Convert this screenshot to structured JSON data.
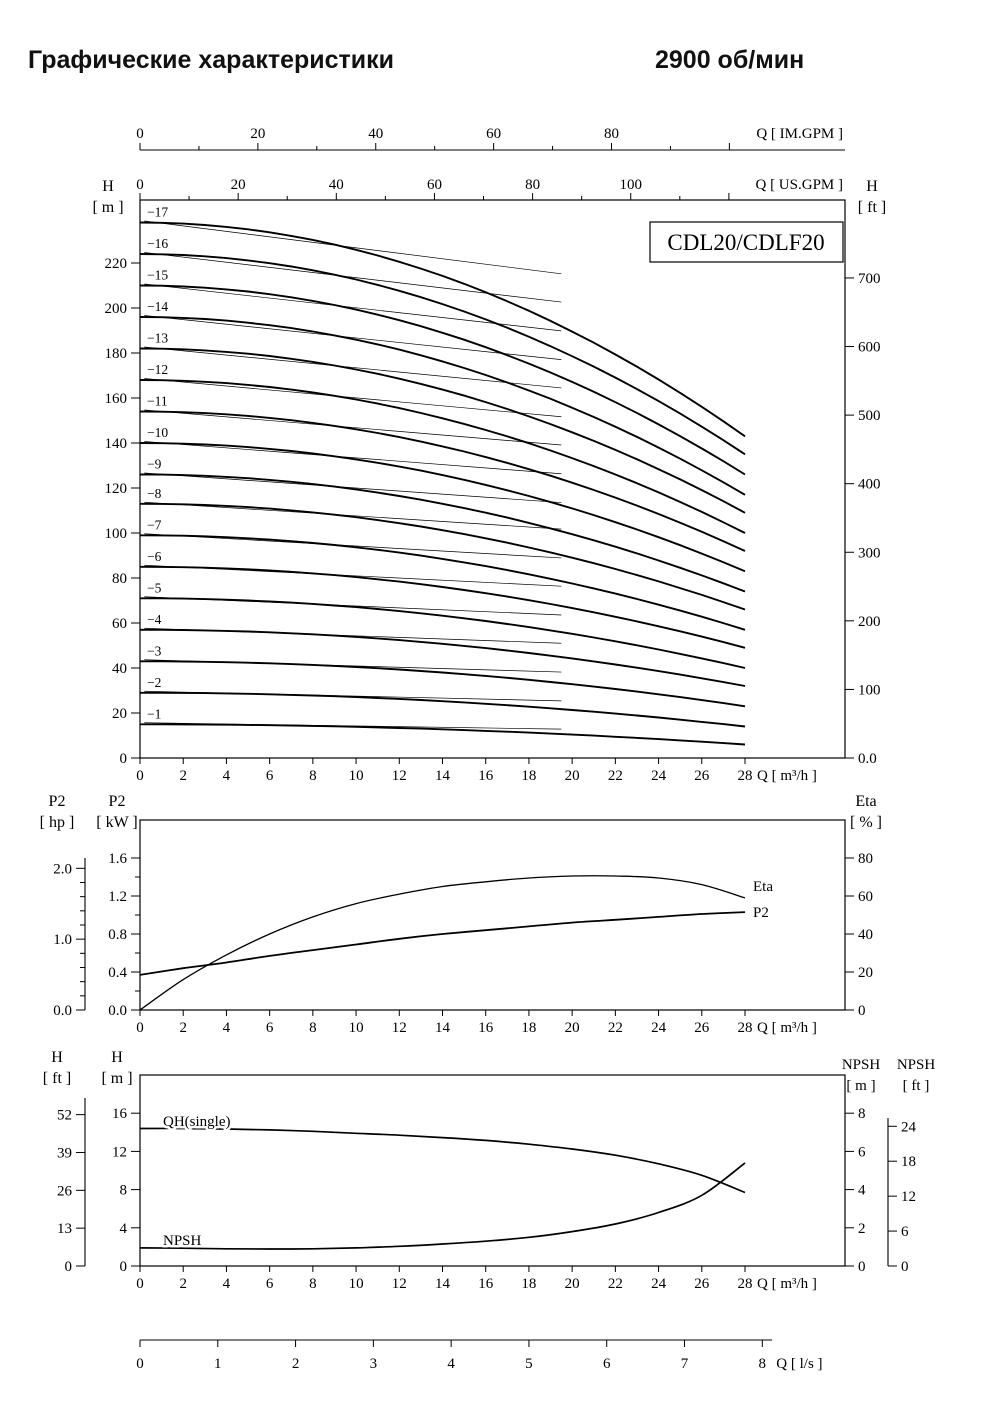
{
  "header": {
    "title": "Графические характеристики",
    "rpm": "2900 об/мин"
  },
  "chart_data": [
    {
      "id": "main_qh",
      "type": "line",
      "title_box": "CDL20/CDLF20",
      "top_axes": [
        {
          "id": "im_gpm",
          "label": "Q [ IM.GPM ]",
          "ticks": [
            0,
            20,
            40,
            60,
            80
          ]
        },
        {
          "id": "us_gpm",
          "label": "Q [ US.GPM ]",
          "ticks": [
            0,
            20,
            40,
            60,
            80,
            100
          ]
        }
      ],
      "x_axis": {
        "label": "Q [ m³/h ]",
        "range": [
          0,
          28
        ],
        "ticks": [
          0,
          2,
          4,
          6,
          8,
          10,
          12,
          14,
          16,
          18,
          20,
          22,
          24,
          26,
          28
        ]
      },
      "y_left": {
        "name": "H",
        "unit": "[ m ]",
        "range": [
          0,
          248
        ],
        "ticks": [
          0,
          20,
          40,
          60,
          80,
          100,
          120,
          140,
          160,
          180,
          200,
          220
        ]
      },
      "y_right": {
        "name": "H",
        "unit": "[ ft ]",
        "ticks": [
          "0.0",
          "100",
          "200",
          "300",
          "400",
          "500",
          "600",
          "700"
        ]
      },
      "stages": [
        {
          "label": "−1",
          "h_0": 15,
          "h_28": 6
        },
        {
          "label": "−2",
          "h_0": 29,
          "h_28": 14
        },
        {
          "label": "−3",
          "h_0": 43,
          "h_28": 23
        },
        {
          "label": "−4",
          "h_0": 57,
          "h_28": 32
        },
        {
          "label": "−5",
          "h_0": 71,
          "h_28": 40
        },
        {
          "label": "−6",
          "h_0": 85,
          "h_28": 49
        },
        {
          "label": "−7",
          "h_0": 99,
          "h_28": 57
        },
        {
          "label": "−8",
          "h_0": 113,
          "h_28": 66
        },
        {
          "label": "−9",
          "h_0": 126,
          "h_28": 74
        },
        {
          "label": "−10",
          "h_0": 140,
          "h_28": 83
        },
        {
          "label": "−11",
          "h_0": 154,
          "h_28": 92
        },
        {
          "label": "−12",
          "h_0": 168,
          "h_28": 100
        },
        {
          "label": "−13",
          "h_0": 182,
          "h_28": 109
        },
        {
          "label": "−14",
          "h_0": 196,
          "h_28": 117
        },
        {
          "label": "−15",
          "h_0": 210,
          "h_28": 126
        },
        {
          "label": "−16",
          "h_0": 224,
          "h_28": 135
        },
        {
          "label": "−17",
          "h_0": 238,
          "h_28": 143
        }
      ]
    },
    {
      "id": "power_eta",
      "type": "line",
      "x_axis": {
        "label": "Q [ m³/h ]",
        "range": [
          0,
          28
        ],
        "ticks": [
          0,
          2,
          4,
          6,
          8,
          10,
          12,
          14,
          16,
          18,
          20,
          22,
          24,
          26,
          28
        ]
      },
      "y_hp": {
        "name": "P2",
        "unit": "[ hp ]",
        "ticks": [
          "0.0",
          "1.0",
          "2.0"
        ]
      },
      "y_kw": {
        "name": "P2",
        "unit": "[ kW ]",
        "range": [
          0,
          2.0
        ],
        "ticks": [
          "0.0",
          "0.4",
          "0.8",
          "1.2",
          "1.6"
        ]
      },
      "y_eta": {
        "name": "Eta",
        "unit": "[ % ]",
        "range": [
          0,
          100
        ],
        "ticks": [
          0,
          20,
          40,
          60,
          80
        ]
      },
      "series": [
        {
          "name": "P2",
          "label": "P2",
          "axis": "kw",
          "x": [
            0,
            2,
            4,
            6,
            8,
            10,
            12,
            14,
            16,
            18,
            20,
            22,
            24,
            26,
            28
          ],
          "y": [
            0.37,
            0.44,
            0.5,
            0.57,
            0.63,
            0.69,
            0.75,
            0.8,
            0.84,
            0.88,
            0.92,
            0.95,
            0.98,
            1.01,
            1.03
          ]
        },
        {
          "name": "Eta",
          "label": "Eta",
          "axis": "eta",
          "x": [
            0,
            2,
            4,
            6,
            8,
            10,
            12,
            14,
            16,
            18,
            20,
            22,
            24,
            26,
            28
          ],
          "y": [
            0,
            16,
            29,
            40,
            49,
            56,
            61,
            65,
            67.5,
            69.5,
            70.5,
            70.5,
            69.5,
            66,
            59
          ]
        }
      ]
    },
    {
      "id": "single_stage_npsh",
      "type": "line",
      "x_axis": {
        "label": "Q [ m³/h ]",
        "range": [
          0,
          28
        ],
        "ticks": [
          0,
          2,
          4,
          6,
          8,
          10,
          12,
          14,
          16,
          18,
          20,
          22,
          24,
          26,
          28
        ]
      },
      "x_axis2": {
        "label": "Q [ l/s ]",
        "range": [
          0,
          8
        ],
        "ticks": [
          0,
          1,
          2,
          3,
          4,
          5,
          6,
          7,
          8
        ]
      },
      "y_h_m": {
        "name": "H",
        "unit": "[ m ]",
        "range": [
          0,
          20
        ],
        "ticks": [
          0,
          4,
          8,
          12,
          16
        ]
      },
      "y_h_ft": {
        "name": "H",
        "unit": "[ ft ]",
        "ticks": [
          0,
          13,
          26,
          39,
          52
        ]
      },
      "y_npsh_m": {
        "name": "NPSH",
        "unit": "[ m ]",
        "range": [
          0,
          10
        ],
        "ticks": [
          0,
          2,
          4,
          6,
          8
        ]
      },
      "y_npsh_ft": {
        "name": "NPSH",
        "unit": "[ ft ]",
        "ticks": [
          0,
          6,
          12,
          18,
          24
        ]
      },
      "series": [
        {
          "name": "QH(single)",
          "label": "QH(single)",
          "axis": "h_m",
          "x": [
            0,
            2,
            4,
            6,
            8,
            10,
            12,
            14,
            16,
            18,
            20,
            22,
            24,
            26,
            28
          ],
          "y": [
            14.4,
            14.4,
            14.35,
            14.25,
            14.1,
            13.9,
            13.7,
            13.45,
            13.15,
            12.75,
            12.25,
            11.6,
            10.7,
            9.5,
            7.7
          ]
        },
        {
          "name": "NPSH",
          "label": "NPSH",
          "axis": "npsh_m",
          "x": [
            0,
            2,
            4,
            6,
            8,
            10,
            12,
            14,
            16,
            18,
            20,
            22,
            24,
            26,
            28
          ],
          "y": [
            0.95,
            0.93,
            0.9,
            0.89,
            0.9,
            0.95,
            1.03,
            1.15,
            1.3,
            1.5,
            1.8,
            2.2,
            2.8,
            3.7,
            5.4
          ]
        }
      ]
    }
  ]
}
